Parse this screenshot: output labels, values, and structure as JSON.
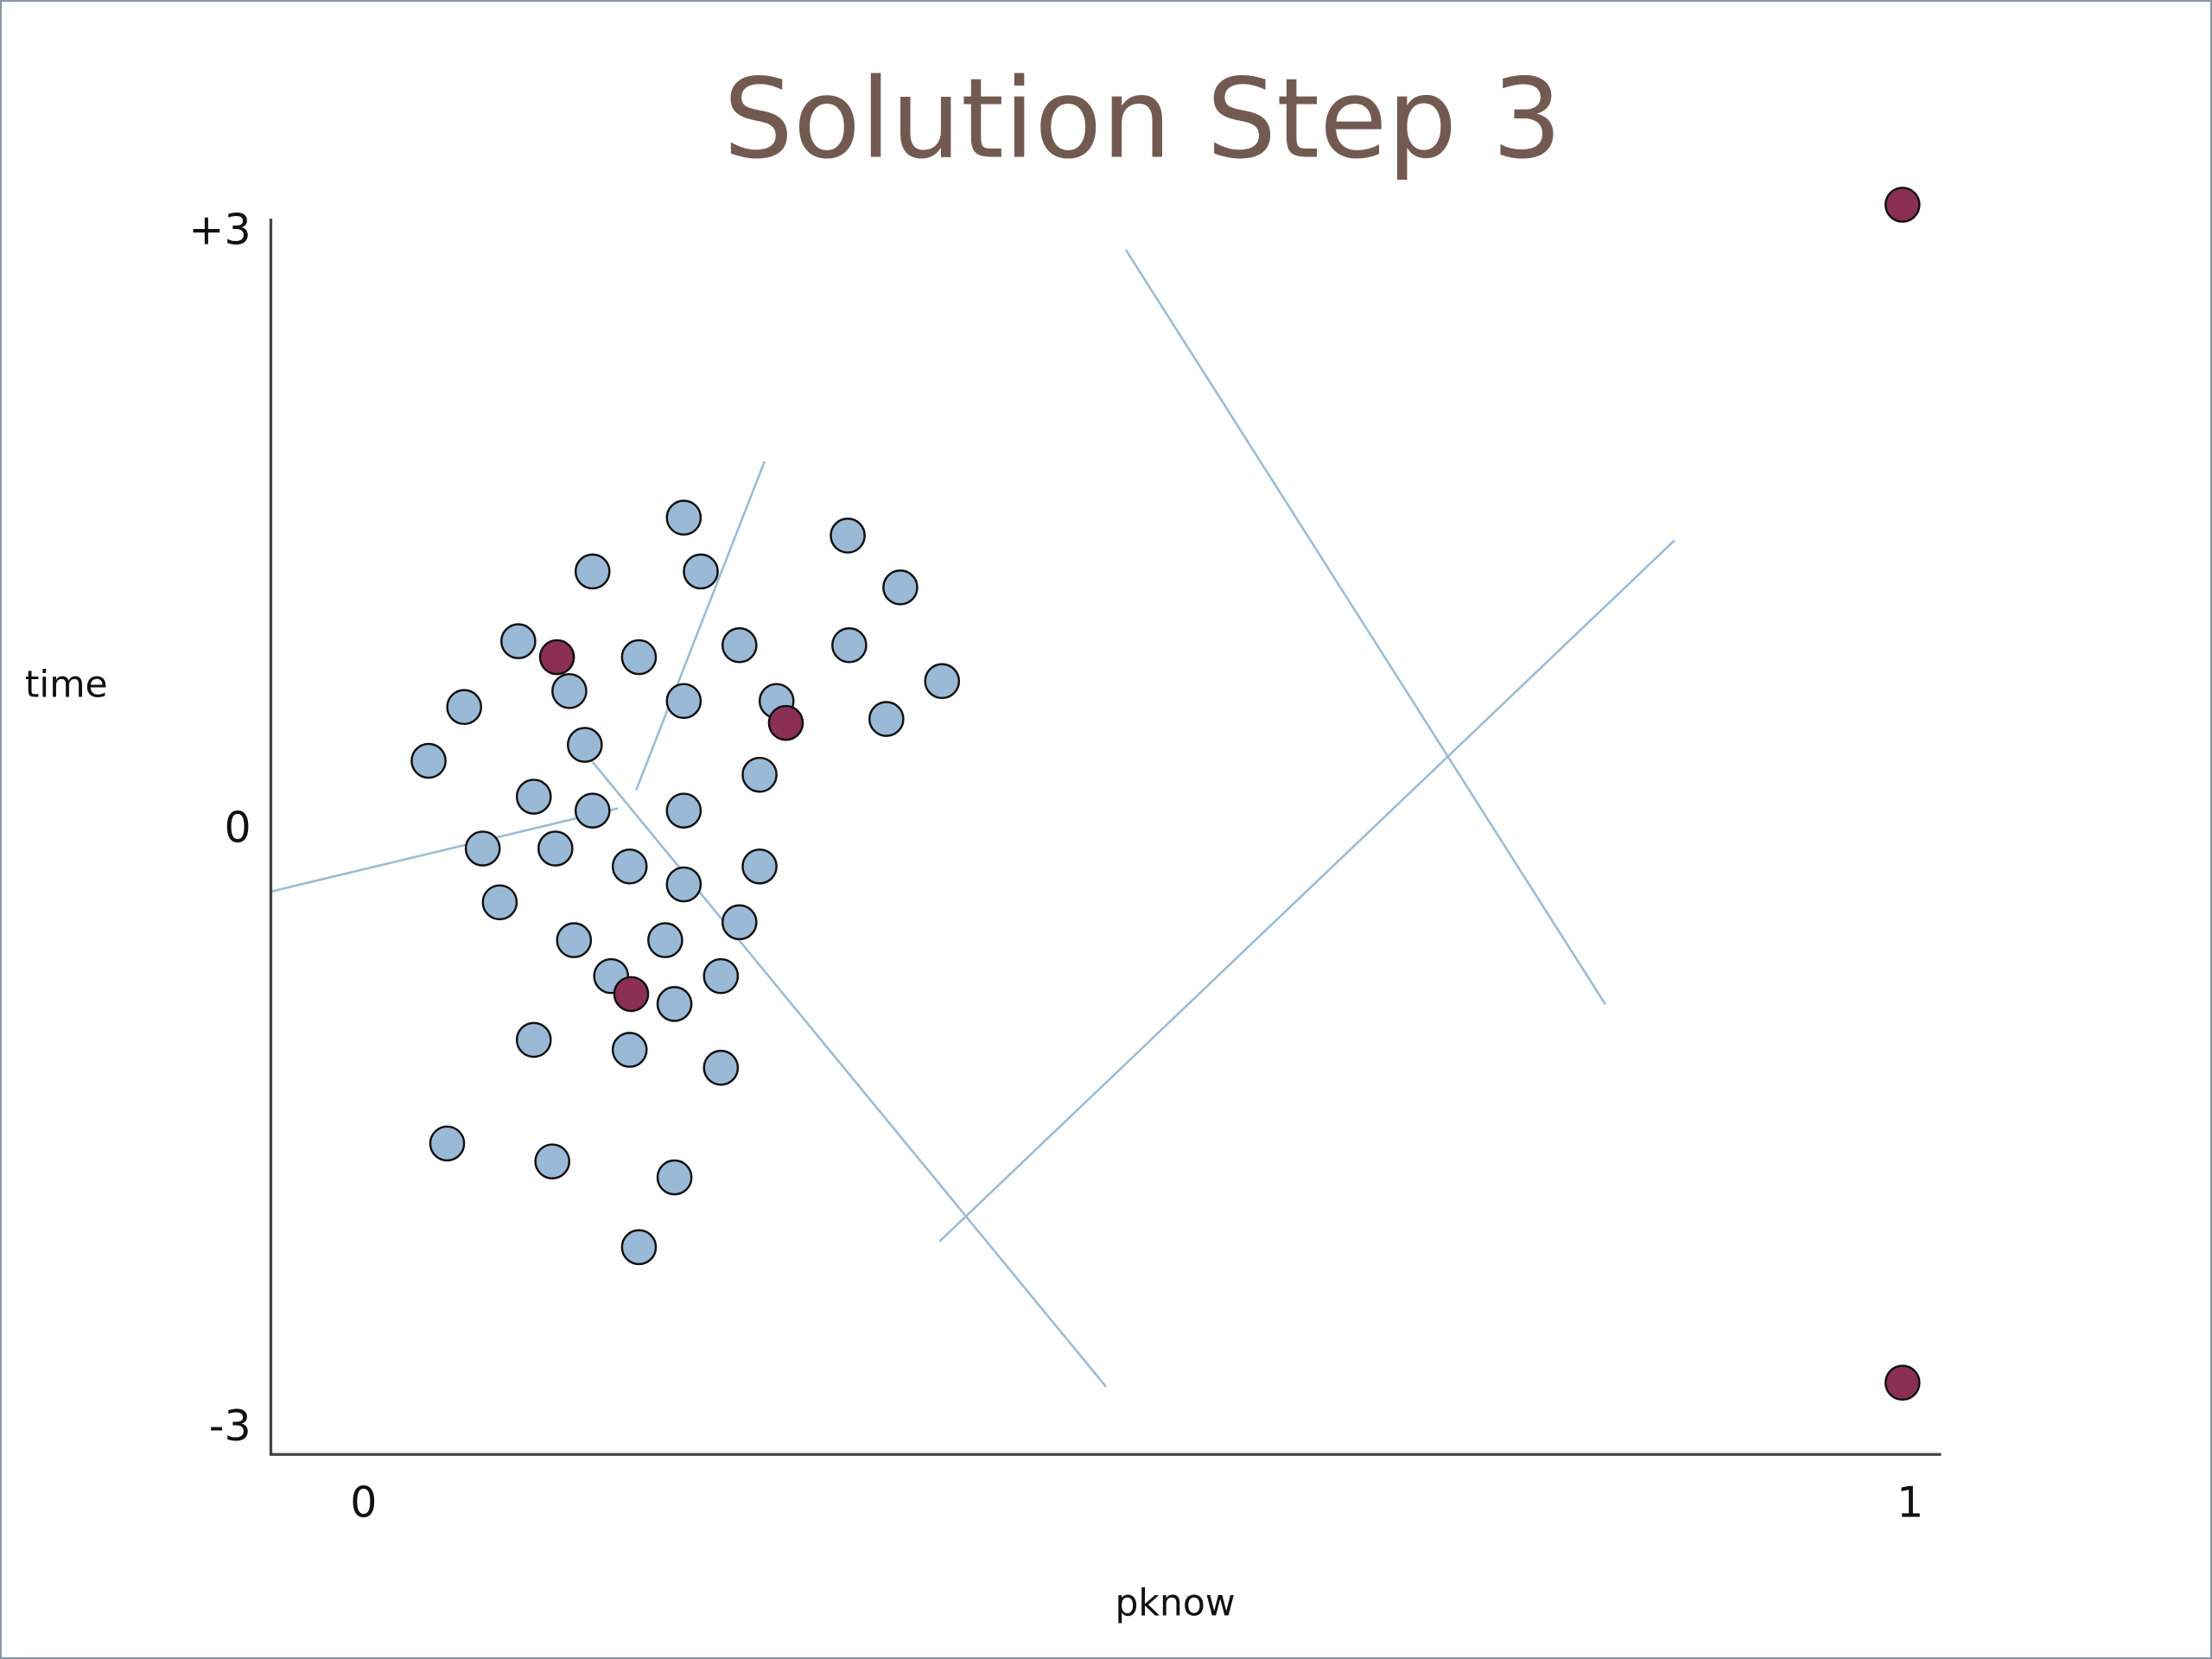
{
  "chart_data": {
    "type": "scatter",
    "title": "Solution Step 3",
    "x_label": "pknow",
    "y_label": "time",
    "xlim": [
      -0.06,
      1.02
    ],
    "ylim": [
      -3.13,
      3.07
    ],
    "xticks": [
      0,
      1
    ],
    "yticks": [
      {
        "value": 3,
        "label": "+3"
      },
      0,
      -3
    ],
    "series": [
      {
        "color": "#9ab9d6",
        "x": [
          0.207,
          0.313,
          0.148,
          0.218,
          0.347,
          0.1,
          0.178,
          0.243,
          0.314,
          0.133,
          0.207,
          0.267,
          0.374,
          0.065,
          0.338,
          0.143,
          0.042,
          0.256,
          0.11,
          0.148,
          0.207,
          0.077,
          0.124,
          0.172,
          0.256,
          0.207,
          0.088,
          0.243,
          0.136,
          0.195,
          0.16,
          0.231,
          0.201,
          0.11,
          0.172,
          0.231,
          0.054,
          0.122,
          0.201,
          0.178
        ],
        "values": [
          1.57,
          1.48,
          1.3,
          1.3,
          1.22,
          0.95,
          0.87,
          0.93,
          0.93,
          0.7,
          0.65,
          0.65,
          0.75,
          0.62,
          0.56,
          0.43,
          0.35,
          0.28,
          0.17,
          0.1,
          0.1,
          -0.09,
          -0.09,
          -0.18,
          -0.18,
          -0.27,
          -0.36,
          -0.46,
          -0.55,
          -0.55,
          -0.73,
          -0.73,
          -0.87,
          -1.05,
          -1.1,
          -1.19,
          -1.57,
          -1.66,
          -1.74,
          -2.09
        ]
      },
      {
        "color": "#8b2f55",
        "x": [
          0.125,
          0.273,
          0.173,
          0.995,
          0.995
        ],
        "values": [
          0.87,
          0.54,
          -0.82,
          3.14,
          -2.77
        ]
      }
    ]
  }
}
